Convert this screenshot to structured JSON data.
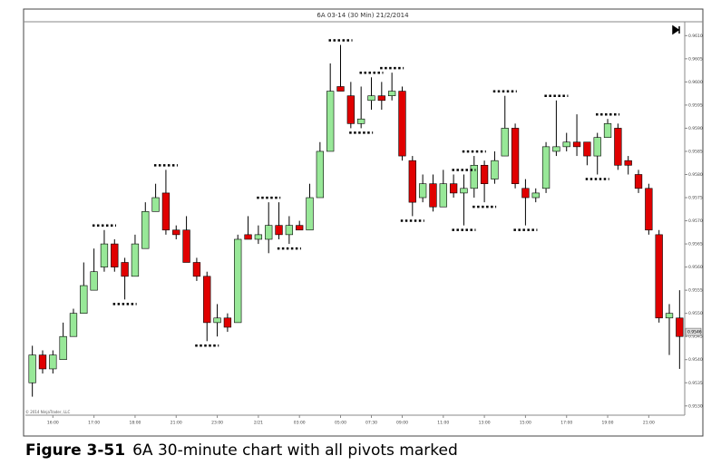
{
  "chart_data": {
    "type": "candlestick",
    "title": "6A 03-14 (30 Min)  21/2/2014",
    "watermark": "© 2014 NinjaTrader, LLC",
    "up_color": "#98e898",
    "down_color": "#e00000",
    "categories": [
      null,
      null,
      "16:00",
      null,
      null,
      null,
      "17:00",
      null,
      null,
      null,
      "18:00",
      null,
      null,
      null,
      "21:00",
      null,
      null,
      null,
      "23:00",
      null,
      null,
      null,
      "2/21",
      null,
      null,
      null,
      "03:00",
      null,
      null,
      null,
      "05:00",
      null,
      null,
      "07:30",
      null,
      null,
      "09:00",
      null,
      null,
      null,
      "11:00",
      null,
      null,
      null,
      "13:00",
      null,
      null,
      null,
      "15:00",
      null,
      null,
      null,
      "17:00",
      null,
      null,
      null,
      "19:00",
      null,
      null,
      null,
      "21:00",
      null,
      null,
      null
    ],
    "open": [
      0.9535,
      0.9541,
      0.9538,
      0.954,
      0.9545,
      0.955,
      0.9555,
      0.956,
      0.9565,
      0.9561,
      0.9558,
      0.9564,
      0.9572,
      0.9576,
      0.9568,
      0.9568,
      0.9561,
      0.9558,
      0.9548,
      0.9549,
      0.9548,
      0.9567,
      0.9566,
      0.9566,
      0.9569,
      0.9567,
      0.9569,
      0.9568,
      0.9575,
      0.9585,
      0.9599,
      0.9597,
      0.9591,
      0.9596,
      0.9597,
      0.9597,
      0.9598,
      0.9583,
      0.9575,
      0.9578,
      0.9573,
      0.9578,
      0.9576,
      0.9577,
      0.9582,
      0.9579,
      0.9584,
      0.959,
      0.9577,
      0.9575,
      0.9577,
      0.9585,
      0.9586,
      0.9587,
      0.9587,
      0.9584,
      0.9588,
      0.959,
      0.9583,
      0.958,
      0.9577,
      0.9567,
      0.9549,
      0.9549
    ],
    "high": [
      0.9543,
      0.9542,
      0.9542,
      0.9548,
      0.9551,
      0.9561,
      0.9564,
      0.9568,
      0.9566,
      0.9562,
      0.9567,
      0.9574,
      0.9578,
      0.9581,
      0.9569,
      0.9571,
      0.9562,
      0.9559,
      0.9552,
      0.955,
      0.9567,
      0.9571,
      0.9569,
      0.9574,
      0.9574,
      0.9571,
      0.957,
      0.9578,
      0.9587,
      0.9604,
      0.9608,
      0.96,
      0.9599,
      0.9601,
      0.96,
      0.9602,
      0.9599,
      0.9584,
      0.958,
      0.958,
      0.9581,
      0.958,
      0.958,
      0.9584,
      0.9583,
      0.9585,
      0.9597,
      0.9591,
      0.9579,
      0.9577,
      0.9587,
      0.9596,
      0.9589,
      0.9593,
      0.9587,
      0.9589,
      0.9592,
      0.9591,
      0.9584,
      0.9581,
      0.9578,
      0.9568,
      0.9552,
      0.9555
    ],
    "low": [
      0.9532,
      0.9537,
      0.9537,
      0.954,
      0.9545,
      0.955,
      0.9555,
      0.9559,
      0.9559,
      0.9553,
      0.9558,
      0.9564,
      0.9572,
      0.9567,
      0.9566,
      0.9561,
      0.9557,
      0.9544,
      0.9545,
      0.9546,
      0.9548,
      0.9566,
      0.9565,
      0.9563,
      0.9566,
      0.9565,
      0.9568,
      0.9568,
      0.9575,
      0.9585,
      0.9598,
      0.959,
      0.959,
      0.9594,
      0.9594,
      0.9596,
      0.9583,
      0.9571,
      0.9574,
      0.9572,
      0.9573,
      0.9575,
      0.9569,
      0.9575,
      0.9574,
      0.9578,
      0.9584,
      0.9577,
      0.9569,
      0.9574,
      0.9576,
      0.9584,
      0.9585,
      0.9584,
      0.9582,
      0.958,
      0.9588,
      0.9581,
      0.958,
      0.9576,
      0.9567,
      0.9548,
      0.9541,
      0.9538
    ],
    "close": [
      0.9541,
      0.9538,
      0.9541,
      0.9545,
      0.955,
      0.9556,
      0.9559,
      0.9565,
      0.956,
      0.9558,
      0.9565,
      0.9572,
      0.9575,
      0.9568,
      0.9567,
      0.9561,
      0.9558,
      0.9548,
      0.9549,
      0.9547,
      0.9566,
      0.9566,
      0.9567,
      0.9569,
      0.9567,
      0.9569,
      0.9568,
      0.9575,
      0.9585,
      0.9598,
      0.9598,
      0.9591,
      0.9592,
      0.9597,
      0.9596,
      0.9598,
      0.9584,
      0.9574,
      0.9578,
      0.9573,
      0.9578,
      0.9576,
      0.9577,
      0.9582,
      0.9578,
      0.9583,
      0.959,
      0.9578,
      0.9575,
      0.9576,
      0.9586,
      0.9586,
      0.9587,
      0.9586,
      0.9584,
      0.9588,
      0.9591,
      0.9582,
      0.9582,
      0.9577,
      0.9568,
      0.9549,
      0.955,
      0.9545
    ],
    "pivot_highs": [
      7,
      13,
      23,
      30,
      33,
      35,
      42,
      43,
      46,
      51,
      56
    ],
    "pivot_lows": [
      9,
      17,
      25,
      32,
      37,
      42,
      44,
      48,
      55
    ],
    "last_price": 0.9546,
    "ylim": [
      0.9528,
      0.9613
    ],
    "yticks": [
      {
        "value": 0.953,
        "label": "0.9530"
      },
      {
        "value": 0.9535,
        "label": "0.9535"
      },
      {
        "value": 0.954,
        "label": "0.9540"
      },
      {
        "value": 0.9545,
        "label": "0.9545"
      },
      {
        "value": 0.955,
        "label": "0.9550"
      },
      {
        "value": 0.9555,
        "label": "0.9555"
      },
      {
        "value": 0.956,
        "label": "0.9560"
      },
      {
        "value": 0.9565,
        "label": "0.9565"
      },
      {
        "value": 0.957,
        "label": "0.9570"
      },
      {
        "value": 0.9575,
        "label": "0.9575"
      },
      {
        "value": 0.958,
        "label": "0.9580"
      },
      {
        "value": 0.9585,
        "label": "0.9585"
      },
      {
        "value": 0.959,
        "label": "0.9590"
      },
      {
        "value": 0.9595,
        "label": "0.9595"
      },
      {
        "value": 0.96,
        "label": "0.9600"
      },
      {
        "value": 0.9605,
        "label": "0.9605"
      },
      {
        "value": 0.961,
        "label": "0.9610"
      }
    ]
  },
  "caption": {
    "number": "Figure 3-51",
    "text": "6A 30-minute chart with all pivots marked"
  }
}
